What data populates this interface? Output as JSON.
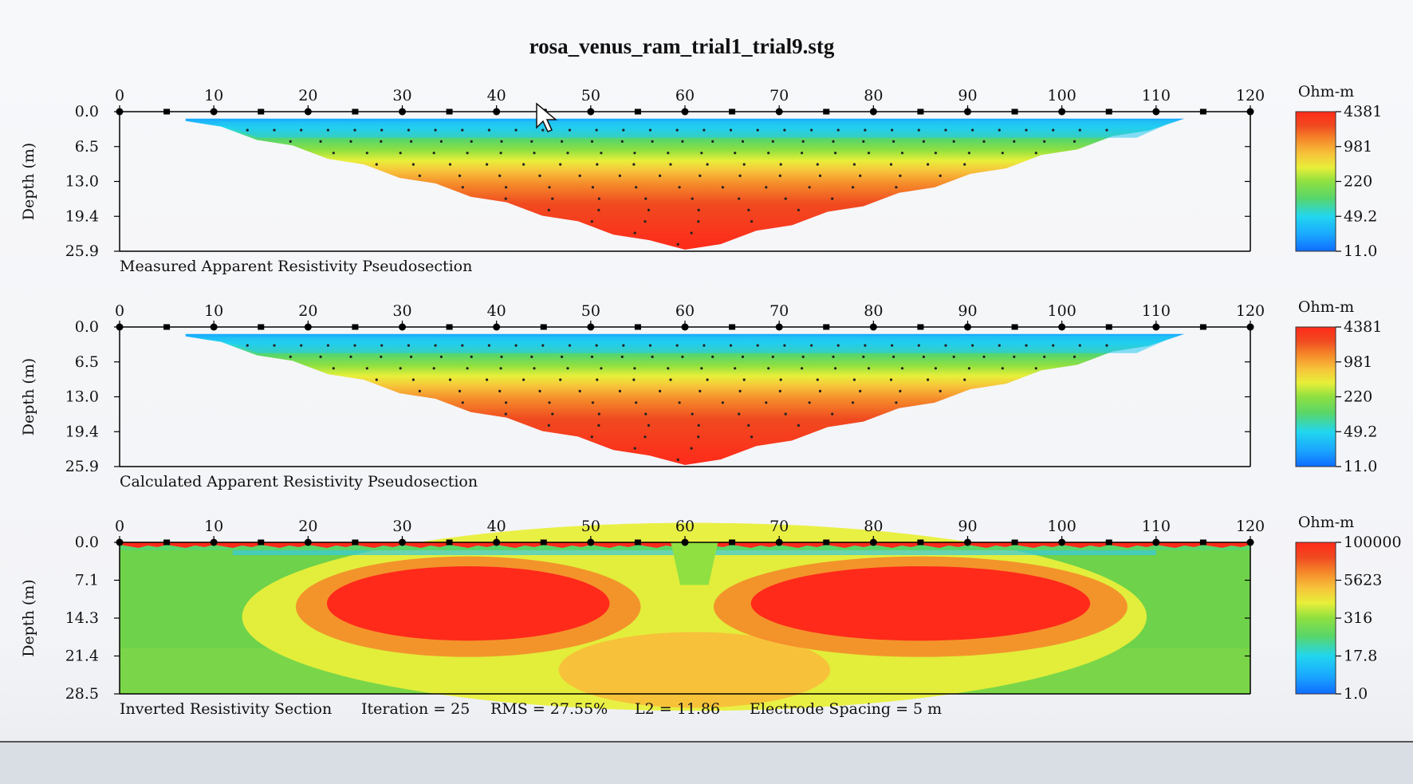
{
  "title": "rosa_venus_ram_trial1_trial9.stg",
  "colors": {
    "scale": [
      "#0f6cff",
      "#1aa8ff",
      "#22d6ee",
      "#58d66a",
      "#8fe040",
      "#e8ef3a",
      "#f7c23a",
      "#f58a2a",
      "#f04a20",
      "#ff2a1a"
    ]
  },
  "panels": [
    {
      "id": "measured",
      "caption": "Measured Apparent Resistivity Pseudosection",
      "ylabel": "Depth (m)",
      "depth_ticks": [
        "0.0",
        "6.5",
        "13.0",
        "19.4",
        "25.9"
      ],
      "x_ticks": [
        "0",
        "10",
        "20",
        "30",
        "40",
        "50",
        "60",
        "70",
        "80",
        "90",
        "100",
        "110",
        "120"
      ],
      "x_range": [
        0,
        120
      ],
      "depth_range": [
        0,
        25.9
      ],
      "electrode_spacing_m": 5,
      "colorbar": {
        "unit": "Ohm-m",
        "labels": [
          "4381",
          "981",
          "220",
          "49.2",
          "11.0"
        ]
      },
      "pseudosection": {
        "shape_x": [
          7,
          60,
          113
        ],
        "shape_depth": [
          1.3,
          25.9,
          1.3
        ]
      }
    },
    {
      "id": "calculated",
      "caption": "Calculated Apparent Resistivity Pseudosection",
      "ylabel": "Depth (m)",
      "depth_ticks": [
        "0.0",
        "6.5",
        "13.0",
        "19.4",
        "25.9"
      ],
      "x_ticks": [
        "0",
        "10",
        "20",
        "30",
        "40",
        "50",
        "60",
        "70",
        "80",
        "90",
        "100",
        "110",
        "120"
      ],
      "x_range": [
        0,
        120
      ],
      "depth_range": [
        0,
        25.9
      ],
      "electrode_spacing_m": 5,
      "colorbar": {
        "unit": "Ohm-m",
        "labels": [
          "4381",
          "981",
          "220",
          "49.2",
          "11.0"
        ]
      },
      "pseudosection": {
        "shape_x": [
          7,
          60,
          113
        ],
        "shape_depth": [
          1.3,
          25.9,
          1.3
        ]
      }
    },
    {
      "id": "inverted",
      "caption": "Inverted Resistivity Section",
      "ylabel": "Depth (m)",
      "depth_ticks": [
        "0.0",
        "7.1",
        "14.3",
        "21.4",
        "28.5"
      ],
      "x_ticks": [
        "0",
        "10",
        "20",
        "30",
        "40",
        "50",
        "60",
        "70",
        "80",
        "90",
        "100",
        "110",
        "120"
      ],
      "x_range": [
        0,
        120
      ],
      "depth_range": [
        0,
        28.5
      ],
      "electrode_spacing_m": 5,
      "colorbar": {
        "unit": "Ohm-m",
        "labels": [
          "100000",
          "5623",
          "316",
          "17.8",
          "1.0"
        ]
      },
      "stats": {
        "iteration": "Iteration = 25",
        "rms": "RMS = 27.55%",
        "l2": "L2 = 11.86",
        "spacing": "Electrode Spacing = 5 m"
      },
      "anomalies": [
        {
          "x_center": 37,
          "depth_center": 11.5,
          "x_half_width": 15,
          "depth_half_height": 7
        },
        {
          "x_center": 85,
          "depth_center": 11.5,
          "x_half_width": 18,
          "depth_half_height": 7
        }
      ]
    }
  ],
  "chart_data": [
    {
      "type": "heatmap",
      "title": "rosa_venus_ram_trial1_trial9.stg",
      "subtitle": "Measured Apparent Resistivity Pseudosection",
      "ylabel": "Depth (m)",
      "xlim": [
        0,
        120
      ],
      "ylim": [
        25.9,
        0
      ],
      "colorbar_unit": "Ohm-m",
      "colorbar_values": [
        4381,
        981,
        220,
        49.2,
        11.0
      ]
    },
    {
      "type": "heatmap",
      "subtitle": "Calculated Apparent Resistivity Pseudosection",
      "ylabel": "Depth (m)",
      "xlim": [
        0,
        120
      ],
      "ylim": [
        25.9,
        0
      ],
      "colorbar_unit": "Ohm-m",
      "colorbar_values": [
        4381,
        981,
        220,
        49.2,
        11.0
      ]
    },
    {
      "type": "heatmap",
      "subtitle": "Inverted Resistivity Section",
      "ylabel": "Depth (m)",
      "xlim": [
        0,
        120
      ],
      "ylim": [
        28.5,
        0
      ],
      "colorbar_unit": "Ohm-m",
      "colorbar_values": [
        100000,
        5623,
        316,
        17.8,
        1.0
      ],
      "iteration": 25,
      "rms_percent": 27.55,
      "l2": 11.86,
      "electrode_spacing_m": 5
    }
  ]
}
